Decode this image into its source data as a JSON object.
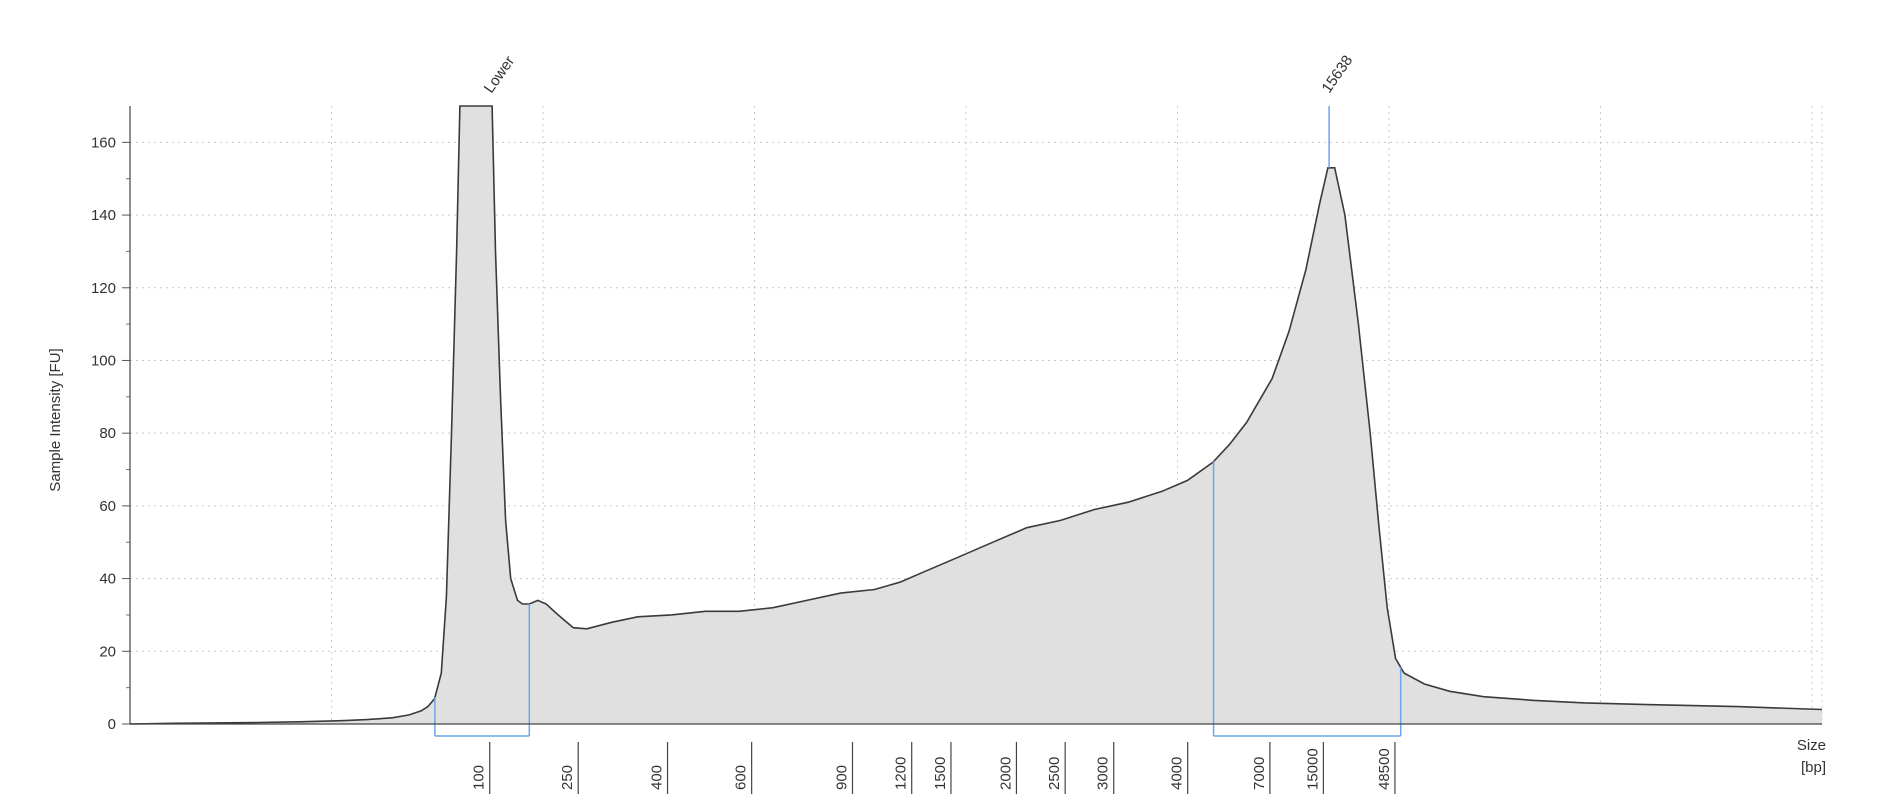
{
  "chart_data": {
    "type": "area",
    "ylabel": "Sample Intensity [FU]",
    "xlabel_line1": "Size",
    "xlabel_line2": "[bp]",
    "ylim": [
      0,
      170
    ],
    "yticks": [
      0,
      20,
      40,
      60,
      80,
      100,
      120,
      140,
      160
    ],
    "grid": true,
    "size_ladder": [
      {
        "label": "100",
        "t": 0.2061
      },
      {
        "label": "250",
        "t": 0.2584
      },
      {
        "label": "400",
        "t": 0.3112
      },
      {
        "label": "600",
        "t": 0.3609
      },
      {
        "label": "900",
        "t": 0.4205
      },
      {
        "label": "1200",
        "t": 0.4555
      },
      {
        "label": "1500",
        "t": 0.4787
      },
      {
        "label": "2000",
        "t": 0.5174
      },
      {
        "label": "2500",
        "t": 0.5462
      },
      {
        "label": "3000",
        "t": 0.5749
      },
      {
        "label": "4000",
        "t": 0.6186
      },
      {
        "label": "7000",
        "t": 0.6672
      },
      {
        "label": "15000",
        "t": 0.6988
      },
      {
        "label": "48500",
        "t": 0.7411
      }
    ],
    "peaks": [
      {
        "label": "Lower",
        "t": 0.2136
      },
      {
        "label": "15638",
        "t": 0.7087
      }
    ],
    "regions": [
      {
        "from_t": 0.1802,
        "to_t": 0.236
      },
      {
        "from_t": 0.6404,
        "to_t": 0.751
      }
    ],
    "trace": [
      [
        0.0,
        0.0
      ],
      [
        0.025,
        0.2
      ],
      [
        0.05,
        0.3
      ],
      [
        0.075,
        0.4
      ],
      [
        0.1,
        0.6
      ],
      [
        0.125,
        0.9
      ],
      [
        0.14,
        1.2
      ],
      [
        0.155,
        1.7
      ],
      [
        0.165,
        2.5
      ],
      [
        0.172,
        3.6
      ],
      [
        0.176,
        4.8
      ],
      [
        0.18,
        7.0
      ],
      [
        0.184,
        14.0
      ],
      [
        0.187,
        35.0
      ],
      [
        0.19,
        80.0
      ],
      [
        0.193,
        130.0
      ],
      [
        0.195,
        170.0
      ],
      [
        0.214,
        170.0
      ],
      [
        0.216,
        130.0
      ],
      [
        0.219,
        90.0
      ],
      [
        0.222,
        56.0
      ],
      [
        0.225,
        40.0
      ],
      [
        0.229,
        34.0
      ],
      [
        0.232,
        33.0
      ],
      [
        0.236,
        33.0
      ],
      [
        0.241,
        34.0
      ],
      [
        0.246,
        33.0
      ],
      [
        0.253,
        30.0
      ],
      [
        0.262,
        26.5
      ],
      [
        0.27,
        26.2
      ],
      [
        0.285,
        28.0
      ],
      [
        0.3,
        29.5
      ],
      [
        0.32,
        30.0
      ],
      [
        0.34,
        31.0
      ],
      [
        0.36,
        31.0
      ],
      [
        0.38,
        32.0
      ],
      [
        0.4,
        34.0
      ],
      [
        0.42,
        36.0
      ],
      [
        0.44,
        37.0
      ],
      [
        0.455,
        39.0
      ],
      [
        0.47,
        42.0
      ],
      [
        0.49,
        46.0
      ],
      [
        0.51,
        50.0
      ],
      [
        0.53,
        54.0
      ],
      [
        0.55,
        56.0
      ],
      [
        0.57,
        59.0
      ],
      [
        0.59,
        61.0
      ],
      [
        0.61,
        64.0
      ],
      [
        0.625,
        67.0
      ],
      [
        0.64,
        72.0
      ],
      [
        0.65,
        77.0
      ],
      [
        0.66,
        83.0
      ],
      [
        0.675,
        95.0
      ],
      [
        0.685,
        108.0
      ],
      [
        0.695,
        125.0
      ],
      [
        0.703,
        143.0
      ],
      [
        0.708,
        153.0
      ],
      [
        0.712,
        153.0
      ],
      [
        0.718,
        140.0
      ],
      [
        0.726,
        110.0
      ],
      [
        0.733,
        80.0
      ],
      [
        0.738,
        55.0
      ],
      [
        0.743,
        32.0
      ],
      [
        0.748,
        18.0
      ],
      [
        0.753,
        14.0
      ],
      [
        0.765,
        11.0
      ],
      [
        0.78,
        9.0
      ],
      [
        0.8,
        7.5
      ],
      [
        0.83,
        6.5
      ],
      [
        0.86,
        5.8
      ],
      [
        0.9,
        5.3
      ],
      [
        0.95,
        4.8
      ],
      [
        1.0,
        4.0
      ]
    ]
  }
}
